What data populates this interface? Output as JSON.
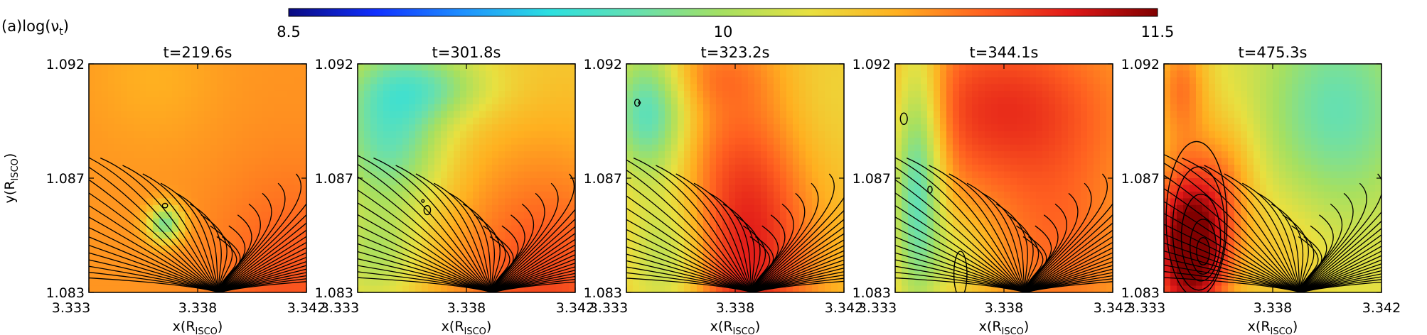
{
  "figure": {
    "panel_label": "(a)",
    "variable_label": "log(ν",
    "variable_subscript": "t",
    "variable_close": ")"
  },
  "colorbar": {
    "min_label": "8.5",
    "mid_label": "10",
    "max_label": "11.5",
    "colors": [
      "#0a0a80",
      "#1030ff",
      "#1e90ff",
      "#2ce0e0",
      "#66e0b0",
      "#a6e060",
      "#e8e040",
      "#ffb020",
      "#ff6020",
      "#e01818",
      "#800000"
    ]
  },
  "chart_data": [
    {
      "type": "heatmap",
      "title": "t=219.6s",
      "xlabel": "x(R_ISCO)",
      "ylabel": "y(R_ISCO)",
      "xlim": [
        3.333,
        3.342
      ],
      "ylim": [
        1.083,
        1.092
      ],
      "xticks": [
        "3.333",
        "3.338",
        "3.342"
      ],
      "yticks": [
        "1.083",
        "1.087",
        "1.092"
      ],
      "colorbar_range": [
        8.5,
        11.5
      ],
      "background_level": 10.7,
      "features": "field lines converging to bottom near x=3.339; small blue disturbance near x=3.336"
    },
    {
      "type": "heatmap",
      "title": "t=301.8s",
      "xlabel": "x(R_ISCO)",
      "ylabel": "",
      "xlim": [
        3.333,
        3.342
      ],
      "ylim": [
        1.083,
        1.092
      ],
      "xticks": [
        "3.333",
        "3.338",
        "3.342"
      ],
      "yticks": [
        "1.083",
        "1.087",
        "1.092"
      ],
      "colorbar_range": [
        8.5,
        11.5
      ],
      "background_level": 10.4,
      "features": "cyan turbulent region upper-left, yellow-orange region lower-right"
    },
    {
      "type": "heatmap",
      "title": "t=323.2s",
      "xlabel": "x(R_ISCO)",
      "ylabel": "",
      "xlim": [
        3.333,
        3.342
      ],
      "ylim": [
        1.083,
        1.092
      ],
      "xticks": [
        "3.333",
        "3.338",
        "3.342"
      ],
      "yticks": [
        "1.083",
        "1.087",
        "1.092"
      ],
      "colorbar_range": [
        8.5,
        11.5
      ],
      "background_level": 10.5,
      "features": "orange band along diagonal, cyan upper-left"
    },
    {
      "type": "heatmap",
      "title": "t=344.1s",
      "xlabel": "x(R_ISCO)",
      "ylabel": "",
      "xlim": [
        3.333,
        3.342
      ],
      "ylim": [
        1.083,
        1.092
      ],
      "xticks": [
        "3.333",
        "3.338",
        "3.342"
      ],
      "yticks": [
        "1.083",
        "1.087",
        "1.092"
      ],
      "colorbar_range": [
        8.5,
        11.5
      ],
      "background_level": 10.6,
      "features": "yellow-orange upper region, cyan left edge, small loops near bottom"
    },
    {
      "type": "heatmap",
      "title": "t=475.3s",
      "xlabel": "x(R_ISCO)",
      "ylabel": "",
      "xlim": [
        3.333,
        3.342
      ],
      "ylim": [
        1.083,
        1.092
      ],
      "xticks": [
        "3.333",
        "3.338",
        "3.342"
      ],
      "yticks": [
        "1.083",
        "1.087",
        "1.092"
      ],
      "colorbar_range": [
        8.5,
        11.5
      ],
      "background_level": 10.3,
      "features": "large red closed-loop region lower-left near x=3.335, cyan right side"
    }
  ]
}
